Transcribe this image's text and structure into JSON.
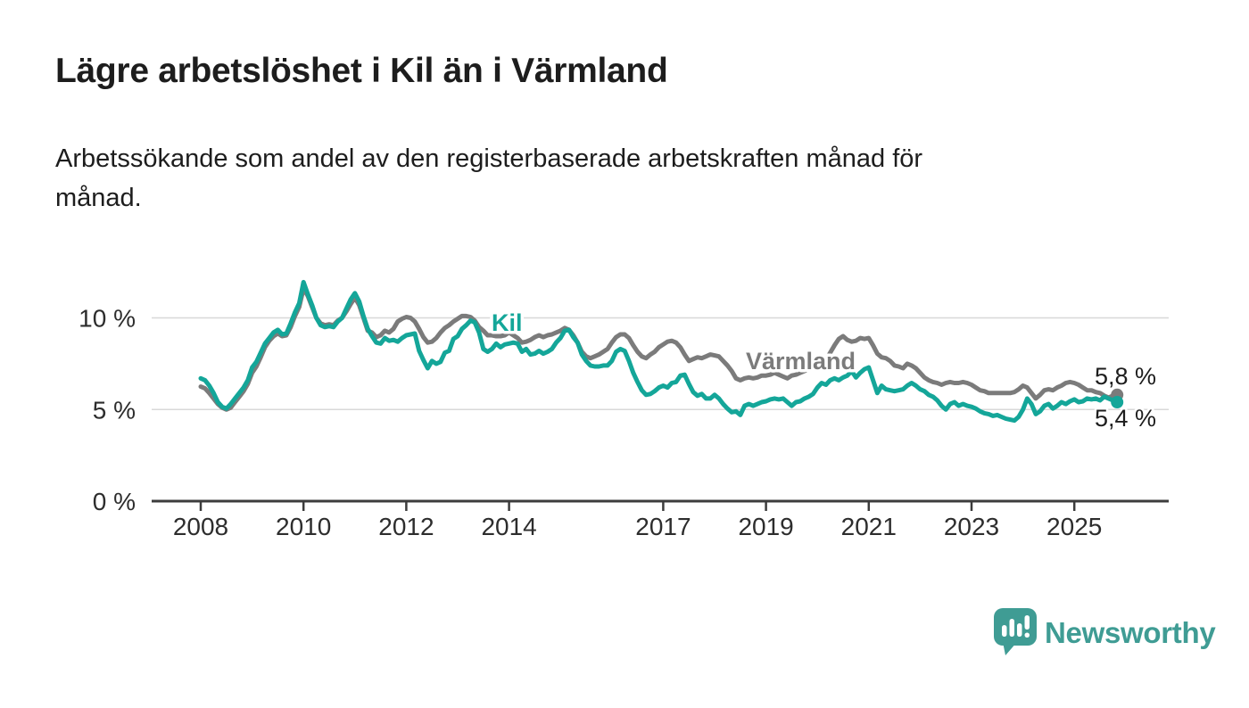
{
  "header": {
    "title": "Lägre arbetslöshet i Kil än i Värmland",
    "subtitle": "Arbetssökande som andel av den registerbaserade arbetskraften månad för\nmånad."
  },
  "chart_data": {
    "type": "line",
    "unit": "%",
    "x_start": "2008-01",
    "x_end": "2025-11",
    "x_ticks": [
      2008,
      2010,
      2012,
      2014,
      2017,
      2019,
      2021,
      2023,
      2025
    ],
    "y_ticks": [
      {
        "value": 0,
        "label": "0 %"
      },
      {
        "value": 5,
        "label": "5 %"
      },
      {
        "value": 10,
        "label": "10 %"
      }
    ],
    "ylim": [
      0,
      12.6
    ],
    "grid": true,
    "legend_position": "inline-labels",
    "series": [
      {
        "name": "Kil",
        "color": "#14a699",
        "end_label": "5,4 %",
        "values": [
          6.7,
          6.6,
          6.3,
          5.9,
          5.4,
          5.15,
          5.05,
          5.3,
          5.6,
          5.9,
          6.2,
          6.6,
          7.3,
          7.6,
          8.1,
          8.6,
          8.9,
          9.2,
          9.35,
          9.1,
          9.15,
          9.7,
          10.3,
          10.8,
          11.95,
          11.3,
          10.7,
          10.0,
          9.6,
          9.5,
          9.55,
          9.5,
          9.8,
          10.0,
          10.5,
          11.0,
          11.35,
          10.9,
          10.1,
          9.4,
          9.0,
          8.65,
          8.6,
          8.9,
          8.75,
          8.8,
          8.7,
          8.9,
          9.05,
          9.1,
          9.15,
          8.2,
          7.7,
          7.25,
          7.65,
          7.5,
          7.6,
          8.1,
          8.2,
          8.85,
          9.0,
          9.4,
          9.6,
          9.85,
          9.75,
          9.2,
          8.3,
          8.15,
          8.3,
          8.6,
          8.4,
          8.55,
          8.6,
          8.65,
          8.6,
          8.15,
          8.3,
          8.0,
          8.05,
          8.2,
          8.05,
          8.15,
          8.3,
          8.65,
          8.9,
          9.3,
          9.35,
          8.95,
          8.65,
          8.0,
          7.65,
          7.4,
          7.35,
          7.35,
          7.4,
          7.4,
          7.65,
          8.15,
          8.3,
          8.2,
          7.65,
          7.0,
          6.5,
          6.05,
          5.8,
          5.85,
          6.0,
          6.2,
          6.3,
          6.2,
          6.45,
          6.5,
          6.85,
          6.9,
          6.4,
          5.95,
          5.75,
          5.85,
          5.6,
          5.6,
          5.8,
          5.6,
          5.3,
          5.05,
          4.85,
          4.9,
          4.7,
          5.2,
          5.3,
          5.2,
          5.3,
          5.4,
          5.45,
          5.55,
          5.6,
          5.55,
          5.6,
          5.4,
          5.2,
          5.4,
          5.45,
          5.6,
          5.7,
          5.85,
          6.2,
          6.45,
          6.35,
          6.6,
          6.7,
          6.6,
          6.75,
          6.85,
          7.1,
          6.75,
          7.0,
          7.2,
          7.3,
          6.6,
          5.9,
          6.3,
          6.1,
          6.05,
          6.0,
          6.05,
          6.1,
          6.3,
          6.45,
          6.3,
          6.1,
          6.0,
          5.8,
          5.7,
          5.5,
          5.2,
          5.0,
          5.3,
          5.4,
          5.2,
          5.3,
          5.2,
          5.15,
          5.05,
          4.9,
          4.8,
          4.75,
          4.65,
          4.7,
          4.6,
          4.5,
          4.45,
          4.4,
          4.6,
          5.0,
          5.6,
          5.3,
          4.75,
          4.9,
          5.2,
          5.3,
          5.05,
          5.2,
          5.4,
          5.3,
          5.45,
          5.55,
          5.4,
          5.45,
          5.6,
          5.55,
          5.6,
          5.5,
          5.7,
          5.6,
          5.5,
          5.4
        ]
      },
      {
        "name": "Värmland",
        "color": "#7b7b7b",
        "end_label": "5,8 %",
        "values": [
          6.25,
          6.15,
          5.9,
          5.6,
          5.3,
          5.1,
          5.0,
          5.1,
          5.4,
          5.7,
          6.0,
          6.4,
          7.0,
          7.35,
          7.85,
          8.4,
          8.75,
          9.0,
          9.15,
          9.0,
          9.05,
          9.5,
          10.1,
          10.6,
          11.6,
          11.2,
          10.6,
          10.0,
          9.7,
          9.6,
          9.65,
          9.6,
          9.85,
          10.0,
          10.35,
          10.75,
          11.1,
          10.7,
          10.0,
          9.3,
          9.2,
          8.95,
          9.05,
          9.3,
          9.2,
          9.4,
          9.8,
          9.95,
          10.05,
          10.0,
          9.8,
          9.4,
          8.95,
          8.65,
          8.7,
          8.9,
          9.2,
          9.45,
          9.6,
          9.8,
          9.95,
          10.1,
          10.1,
          10.05,
          9.85,
          9.5,
          9.3,
          9.05,
          9.05,
          9.0,
          9.0,
          9.05,
          9.2,
          9.05,
          8.9,
          8.65,
          8.7,
          8.8,
          8.95,
          9.05,
          8.95,
          9.05,
          9.1,
          9.2,
          9.3,
          9.45,
          9.35,
          9.05,
          8.65,
          8.15,
          7.9,
          7.8,
          7.9,
          8.0,
          8.15,
          8.3,
          8.65,
          8.95,
          9.1,
          9.1,
          8.9,
          8.5,
          8.15,
          7.9,
          7.8,
          8.0,
          8.15,
          8.4,
          8.55,
          8.7,
          8.75,
          8.65,
          8.4,
          8.0,
          7.65,
          7.75,
          7.85,
          7.8,
          7.9,
          8.0,
          7.95,
          7.9,
          7.65,
          7.4,
          7.1,
          6.7,
          6.6,
          6.7,
          6.75,
          6.7,
          6.75,
          6.85,
          6.85,
          6.9,
          7.0,
          6.9,
          6.8,
          6.7,
          6.85,
          6.9,
          7.0,
          7.1,
          7.2,
          7.35,
          7.5,
          7.6,
          7.7,
          8.1,
          8.5,
          8.85,
          9.0,
          8.8,
          8.7,
          8.75,
          8.9,
          8.85,
          8.9,
          8.5,
          8.05,
          7.85,
          7.8,
          7.65,
          7.4,
          7.35,
          7.25,
          7.5,
          7.4,
          7.25,
          7.0,
          6.75,
          6.6,
          6.5,
          6.45,
          6.35,
          6.45,
          6.5,
          6.45,
          6.45,
          6.5,
          6.45,
          6.35,
          6.2,
          6.05,
          6.0,
          5.9,
          5.9,
          5.9,
          5.9,
          5.9,
          5.9,
          5.95,
          6.1,
          6.3,
          6.2,
          5.9,
          5.6,
          5.8,
          6.05,
          6.1,
          6.05,
          6.2,
          6.3,
          6.45,
          6.5,
          6.45,
          6.35,
          6.2,
          6.05,
          6.05,
          5.95,
          5.9,
          5.75,
          5.65,
          5.75,
          5.8
        ]
      }
    ]
  },
  "branding": {
    "wordmark": "Newsworthy",
    "logo_color": "#3f9c94"
  }
}
